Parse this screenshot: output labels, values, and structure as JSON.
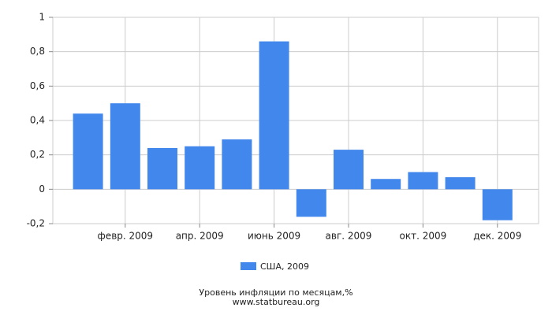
{
  "chart_data": {
    "type": "bar",
    "categories": [
      null,
      "февр. 2009",
      null,
      "апр. 2009",
      null,
      "июнь 2009",
      null,
      "авг. 2009",
      null,
      "окт. 2009",
      null,
      "дек. 2009"
    ],
    "series": [
      {
        "name": "США, 2009",
        "color": "#4287ec",
        "values": [
          0.44,
          0.5,
          0.24,
          0.25,
          0.29,
          0.86,
          -0.16,
          0.23,
          0.06,
          0.1,
          0.07,
          -0.18
        ]
      }
    ],
    "ylim": [
      -0.2,
      1
    ],
    "yticks": [
      {
        "value": -0.2,
        "label": "-0,2"
      },
      0,
      {
        "value": 0.2,
        "label": "0,2"
      },
      {
        "value": 0.4,
        "label": "0,4"
      },
      {
        "value": 0.6,
        "label": "0,6"
      },
      {
        "value": 0.8,
        "label": "0,8"
      },
      1
    ],
    "grid": true,
    "title": "Уровень инфляции по месяцам,%",
    "source": "www.statbureau.org"
  }
}
